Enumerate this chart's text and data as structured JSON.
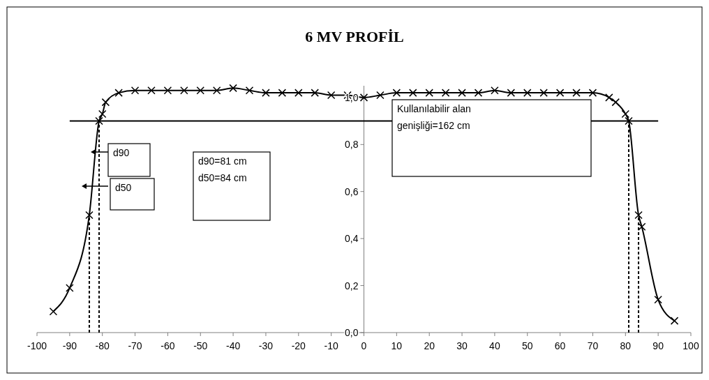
{
  "chart_data": {
    "type": "line",
    "title": "6 MV PROFİL",
    "xlim": [
      -100,
      100
    ],
    "xticks": [
      -100,
      -90,
      -80,
      -70,
      -60,
      -50,
      -40,
      -30,
      -20,
      -10,
      0,
      10,
      20,
      30,
      40,
      50,
      60,
      70,
      80,
      90,
      100
    ],
    "ylim": [
      0,
      1.05
    ],
    "yticks": [
      {
        "value": 0,
        "label": "0,0"
      },
      {
        "value": 0.2,
        "label": "0,2"
      },
      {
        "value": 0.4,
        "label": "0,4"
      },
      {
        "value": 0.6,
        "label": "0,6"
      },
      {
        "value": 0.8,
        "label": "0,8"
      },
      {
        "value": 1,
        "label": "1,0"
      }
    ],
    "grid": false,
    "series": [
      {
        "color": "#000000",
        "marker": "cross",
        "line_style": "solid",
        "x": [
          -95,
          -90,
          -84,
          -81,
          -80,
          -79,
          -75,
          -70,
          -65,
          -60,
          -55,
          -50,
          -45,
          -40,
          -35,
          -30,
          -25,
          -20,
          -15,
          -10,
          -5,
          0,
          5,
          10,
          15,
          20,
          25,
          30,
          35,
          40,
          45,
          50,
          55,
          60,
          65,
          70,
          75,
          77,
          80,
          81,
          84,
          85,
          90,
          95
        ],
        "values": [
          0.09,
          0.19,
          0.5,
          0.9,
          0.93,
          0.98,
          1.02,
          1.03,
          1.03,
          1.03,
          1.03,
          1.03,
          1.03,
          1.04,
          1.03,
          1.02,
          1.02,
          1.02,
          1.02,
          1.01,
          1.01,
          1.0,
          1.01,
          1.02,
          1.02,
          1.02,
          1.02,
          1.02,
          1.02,
          1.03,
          1.02,
          1.02,
          1.02,
          1.02,
          1.02,
          1.02,
          1.0,
          0.98,
          0.93,
          0.9,
          0.5,
          0.45,
          0.14,
          0.05
        ]
      },
      {
        "color": "#000000",
        "marker": "none",
        "line_style": "solid",
        "x": [
          -90,
          90
        ],
        "values": [
          0.9,
          0.9
        ]
      },
      {
        "color": "#000000",
        "marker": "none",
        "line_style": "dashed",
        "x": [
          -84,
          -84
        ],
        "values": [
          0,
          0.5
        ]
      },
      {
        "color": "#000000",
        "marker": "none",
        "line_style": "dashed",
        "x": [
          -81,
          -81
        ],
        "values": [
          0,
          0.9
        ]
      },
      {
        "color": "#000000",
        "marker": "none",
        "line_style": "dashed",
        "x": [
          81,
          81
        ],
        "values": [
          0,
          0.9
        ]
      },
      {
        "color": "#000000",
        "marker": "none",
        "line_style": "dashed",
        "x": [
          84,
          84
        ],
        "values": [
          0,
          0.5
        ]
      }
    ],
    "annotations": [
      "d90",
      "d50",
      "d90=81 cm\nd50=84 cm",
      "Kullanılabilir alan\ngenişliği=162 cm"
    ]
  }
}
